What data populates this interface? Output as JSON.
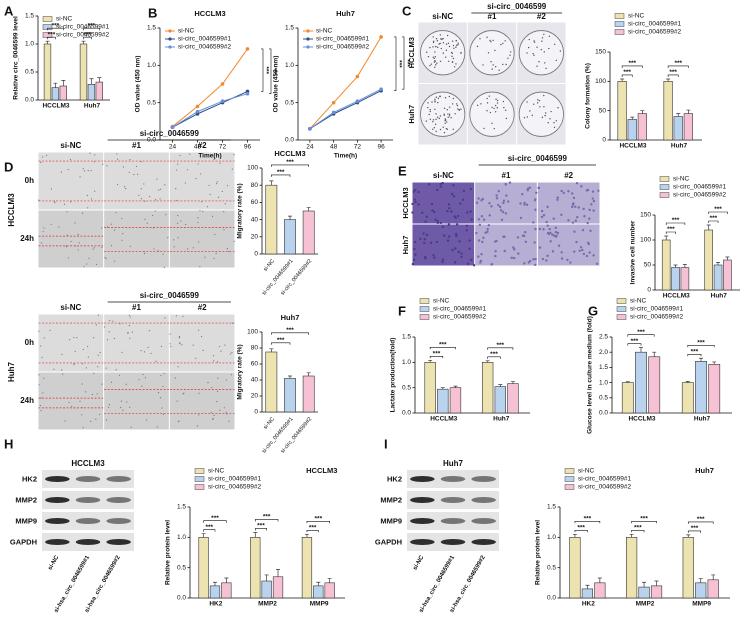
{
  "panel_labels": [
    "A",
    "B",
    "C",
    "D",
    "E",
    "F",
    "G",
    "H",
    "I"
  ],
  "image_panels": [
    {
      "group": "si-circ_0046599",
      "columns": [
        "si-NC",
        "#1",
        "#2"
      ],
      "rows": [
        "HCCLM3",
        "Huh7"
      ]
    },
    {
      "group": "si-circ_0046599",
      "columns": [
        "si-NC",
        "#1",
        "#2"
      ],
      "rows": [
        "0h",
        "24h"
      ],
      "side": "HCCLM3"
    },
    {
      "group": "si-circ_0046599",
      "columns": [
        "si-NC",
        "#1",
        "#2"
      ],
      "rows": [
        "0h",
        "24h"
      ],
      "side": "Huh7"
    },
    {
      "group": "si-circ_0046599",
      "columns": [
        "si-NC",
        "#1",
        "#2"
      ],
      "rows": [
        "HCCLM3",
        "Huh7"
      ]
    }
  ],
  "blots": [
    {
      "title": "HCCLM3",
      "rows": [
        "HK2",
        "MMP2",
        "MMP9",
        "GAPDH"
      ],
      "lanes": [
        "si-NC",
        "si-hsa_circ_0046599#1",
        "si-hsa_circ_0046599#2"
      ]
    },
    {
      "title": "Huh7",
      "rows": [
        "HK2",
        "MMP2",
        "MMP9",
        "GAPDH"
      ],
      "lanes": [
        "si-NC",
        "si-hsa_circ_0046599#1",
        "si-hsa_circ_0046599#2"
      ]
    }
  ],
  "chart_data": [
    {
      "type": "bar",
      "ylabel": "Relative circ_0046599 level",
      "categories": [
        "HCCLM3",
        "Huh7"
      ],
      "legend": "upper left",
      "series": [
        {
          "name": "si-NC",
          "color": "#ede3b0",
          "values": [
            1,
            1
          ],
          "errors": [
            0.05,
            0.05
          ]
        },
        {
          "name": "si-circ_0046599#1",
          "color": "#b9d3ee",
          "values": [
            0.22,
            0.28
          ],
          "errors": [
            0.08,
            0.1
          ]
        },
        {
          "name": "si-circ_0046599#2",
          "color": "#f7c1d5",
          "values": [
            0.25,
            0.32
          ],
          "errors": [
            0.1,
            0.08
          ]
        }
      ],
      "significance": [
        [
          "***",
          "***"
        ],
        [
          "***",
          "***"
        ]
      ],
      "ylim": [
        0,
        1.5
      ],
      "yticks": [
        {
          "value": 0,
          "label": "0.0"
        },
        {
          "value": 0.5,
          "label": "0.5"
        },
        {
          "value": 1,
          "label": "1.0"
        },
        {
          "value": 1.5,
          "label": "1.5"
        }
      ]
    },
    {
      "type": "line",
      "title": "HCCLM3",
      "xlabel": "Time(h)",
      "ylabel": "OD value (450 nm)",
      "legend": "upper left",
      "x": [
        24,
        48,
        72,
        96
      ],
      "xlim": [
        12,
        108
      ],
      "xticks": [
        24,
        48,
        72,
        96
      ],
      "series": [
        {
          "name": "si-NC",
          "color": "#f08a2c",
          "values": [
            0.18,
            0.45,
            0.75,
            1.22
          ]
        },
        {
          "name": "si-circ_0046599#1",
          "color": "#2c4f8a",
          "values": [
            0.17,
            0.35,
            0.5,
            0.65
          ]
        },
        {
          "name": "si-circ_0046599#2",
          "color": "#6a8fd8",
          "values": [
            0.17,
            0.38,
            0.52,
            0.62
          ]
        }
      ],
      "significance": [
        "***",
        "***"
      ],
      "ylim": [
        0,
        1.5
      ],
      "yticks": [
        {
          "value": 0,
          "label": "0.0"
        },
        {
          "value": 0.5,
          "label": "0.5"
        },
        {
          "value": 1,
          "label": "1.0"
        },
        {
          "value": 1.5,
          "label": "1.5"
        }
      ]
    },
    {
      "type": "line",
      "title": "Huh7",
      "xlabel": "Time(h)",
      "ylabel": "OD value (450 nm)",
      "legend": "upper left",
      "x": [
        24,
        48,
        72,
        96
      ],
      "xlim": [
        12,
        108
      ],
      "xticks": [
        24,
        48,
        72,
        96
      ],
      "series": [
        {
          "name": "si-NC",
          "color": "#f08a2c",
          "values": [
            0.15,
            0.5,
            0.85,
            1.38
          ]
        },
        {
          "name": "si-circ_0046599#1",
          "color": "#2c4f8a",
          "values": [
            0.15,
            0.35,
            0.5,
            0.66
          ]
        },
        {
          "name": "si-circ_0046599#2",
          "color": "#6a8fd8",
          "values": [
            0.15,
            0.37,
            0.52,
            0.68
          ]
        }
      ],
      "significance": [
        "***",
        "***"
      ],
      "ylim": [
        0,
        1.5
      ],
      "yticks": [
        {
          "value": 0,
          "label": "0.0"
        },
        {
          "value": 0.5,
          "label": "0.5"
        },
        {
          "value": 1,
          "label": "1.0"
        },
        {
          "value": 1.5,
          "label": "1.5"
        }
      ]
    },
    {
      "type": "bar",
      "ylabel": "Colony formation (%)",
      "categories": [
        "HCCLM3",
        "Huh7"
      ],
      "legend": "above",
      "series": [
        {
          "name": "si-NC",
          "color": "#ede3b0",
          "values": [
            100,
            100
          ],
          "errors": [
            4,
            4
          ]
        },
        {
          "name": "si-circ_0046599#1",
          "color": "#b9d3ee",
          "values": [
            35,
            40
          ],
          "errors": [
            4,
            5
          ]
        },
        {
          "name": "si-circ_0046599#2",
          "color": "#f7c1d5",
          "values": [
            45,
            45
          ],
          "errors": [
            5,
            6
          ]
        }
      ],
      "significance": [
        [
          "***",
          "***"
        ],
        [
          "***",
          "***"
        ]
      ],
      "ylim": [
        0,
        150
      ],
      "yticks": [
        0,
        50,
        100,
        150
      ]
    },
    {
      "type": "bar",
      "title": "HCCLM3",
      "ylabel": "Migratory rate (%)",
      "categories": [
        "si-NC",
        "si-circ_0046599#1",
        "si-circ_0046599#2"
      ],
      "values": [
        80,
        40,
        50
      ],
      "errors": [
        5,
        4,
        4
      ],
      "colors": [
        "#ede3b0",
        "#b9d3ee",
        "#f7c1d5"
      ],
      "xtick_rotation": -50,
      "significance": [
        "***",
        "***"
      ],
      "ylim": [
        0,
        100
      ],
      "yticks": [
        0,
        20,
        40,
        60,
        80,
        100
      ]
    },
    {
      "type": "bar",
      "title": "Huh7",
      "ylabel": "Migratory rate (%)",
      "categories": [
        "si-NC",
        "si-circ_0046599#1",
        "si-circ_0046599#2"
      ],
      "values": [
        75,
        42,
        45
      ],
      "errors": [
        4,
        3,
        4
      ],
      "colors": [
        "#ede3b0",
        "#b9d3ee",
        "#f7c1d5"
      ],
      "xtick_rotation": -50,
      "significance": [
        "***",
        "***"
      ],
      "ylim": [
        0,
        100
      ],
      "yticks": [
        0,
        20,
        40,
        60,
        80,
        100
      ]
    },
    {
      "type": "bar",
      "ylabel": "Invasive cell number",
      "categories": [
        "HCCLM3",
        "Huh7"
      ],
      "legend": "above",
      "series": [
        {
          "name": "si-NC",
          "color": "#ede3b0",
          "values": [
            100,
            120
          ],
          "errors": [
            8,
            10
          ]
        },
        {
          "name": "si-circ_0046599#1",
          "color": "#b9d3ee",
          "values": [
            45,
            50
          ],
          "errors": [
            5,
            5
          ]
        },
        {
          "name": "si-circ_0046599#2",
          "color": "#f7c1d5",
          "values": [
            45,
            60
          ],
          "errors": [
            6,
            6
          ]
        }
      ],
      "significance": [
        [
          "***",
          "***"
        ],
        [
          "***",
          "***"
        ]
      ],
      "ylim": [
        0,
        150
      ],
      "yticks": [
        0,
        50,
        100,
        150
      ]
    },
    {
      "type": "bar",
      "ylabel": "Lactate production(fold)",
      "categories": [
        "HCCLM3",
        "Huh7"
      ],
      "legend": "above",
      "series": [
        {
          "name": "si-NC",
          "color": "#ede3b0",
          "values": [
            1,
            1
          ],
          "errors": [
            0.04,
            0.03
          ]
        },
        {
          "name": "si-circ_0046599#1",
          "color": "#b9d3ee",
          "values": [
            0.47,
            0.52
          ],
          "errors": [
            0.03,
            0.04
          ]
        },
        {
          "name": "si-circ_0046599#2",
          "color": "#f7c1d5",
          "values": [
            0.5,
            0.58
          ],
          "errors": [
            0.03,
            0.04
          ]
        }
      ],
      "significance": [
        [
          "***",
          "***"
        ],
        [
          "***",
          "***"
        ]
      ],
      "ylim": [
        0,
        1.5
      ],
      "yticks": [
        {
          "value": 0,
          "label": "0.0"
        },
        {
          "value": 0.5,
          "label": "0.5"
        },
        {
          "value": 1,
          "label": "1.0"
        },
        {
          "value": 1.5,
          "label": "1.5"
        }
      ]
    },
    {
      "type": "bar",
      "ylabel": "Glucose level in culture medium (fold)",
      "categories": [
        "HCCLM3",
        "Huh7"
      ],
      "legend": "above",
      "series": [
        {
          "name": "si-NC",
          "color": "#ede3b0",
          "values": [
            1,
            1
          ],
          "errors": [
            0.03,
            0.04
          ]
        },
        {
          "name": "si-circ_0046599#1",
          "color": "#b9d3ee",
          "values": [
            2,
            1.7
          ],
          "errors": [
            0.15,
            0.1
          ]
        },
        {
          "name": "si-circ_0046599#2",
          "color": "#f7c1d5",
          "values": [
            1.85,
            1.6
          ],
          "errors": [
            0.15,
            0.08
          ]
        }
      ],
      "significance": [
        [
          "***",
          "***"
        ],
        [
          "***",
          "***"
        ]
      ],
      "ylim": [
        0,
        2.5
      ],
      "yticks": [
        {
          "value": 0,
          "label": "0.0"
        },
        {
          "value": 0.5,
          "label": "0.5"
        },
        {
          "value": 1,
          "label": "1.0"
        },
        {
          "value": 1.5,
          "label": "1.5"
        },
        {
          "value": 2,
          "label": "2.0"
        },
        {
          "value": 2.5,
          "label": "2.5"
        }
      ]
    },
    {
      "type": "bar",
      "title": "HCCLM3",
      "ylabel": "Relative protein level",
      "categories": [
        "HK2",
        "MMP2",
        "MMP9"
      ],
      "legend": "above",
      "series": [
        {
          "name": "si-NC",
          "color": "#ede3b0",
          "values": [
            1,
            1,
            1
          ],
          "errors": [
            0.06,
            0.08,
            0.05
          ]
        },
        {
          "name": "si-circ_0046599#1",
          "color": "#b9d3ee",
          "values": [
            0.2,
            0.28,
            0.2
          ],
          "errors": [
            0.06,
            0.1,
            0.06
          ]
        },
        {
          "name": "si-circ_0046599#2",
          "color": "#f7c1d5",
          "values": [
            0.25,
            0.35,
            0.25
          ],
          "errors": [
            0.08,
            0.12,
            0.07
          ]
        }
      ],
      "significance": [
        [
          "***",
          "***"
        ],
        [
          "***",
          "***"
        ],
        [
          "***",
          "***"
        ]
      ],
      "ylim": [
        0,
        1.5
      ],
      "yticks": [
        {
          "value": 0,
          "label": "0.0"
        },
        {
          "value": 0.5,
          "label": "0.5"
        },
        {
          "value": 1,
          "label": "1.0"
        },
        {
          "value": 1.5,
          "label": "1.5"
        }
      ]
    },
    {
      "type": "bar",
      "title": "Huh7",
      "ylabel": "Relative protein level",
      "categories": [
        "HK2",
        "MMP2",
        "MMP9"
      ],
      "legend": "above",
      "series": [
        {
          "name": "si-NC",
          "color": "#ede3b0",
          "values": [
            1,
            1,
            1
          ],
          "errors": [
            0.05,
            0.05,
            0.04
          ]
        },
        {
          "name": "si-circ_0046599#1",
          "color": "#b9d3ee",
          "values": [
            0.15,
            0.18,
            0.25
          ],
          "errors": [
            0.06,
            0.08,
            0.07
          ]
        },
        {
          "name": "si-circ_0046599#2",
          "color": "#f7c1d5",
          "values": [
            0.25,
            0.2,
            0.3
          ],
          "errors": [
            0.08,
            0.08,
            0.08
          ]
        }
      ],
      "significance": [
        [
          "***",
          "***"
        ],
        [
          "***",
          "***"
        ],
        [
          "***",
          "***"
        ]
      ],
      "ylim": [
        0,
        1.5
      ],
      "yticks": [
        {
          "value": 0,
          "label": "0.0"
        },
        {
          "value": 0.5,
          "label": "0.5"
        },
        {
          "value": 1,
          "label": "1.0"
        },
        {
          "value": 1.5,
          "label": "1.5"
        }
      ]
    }
  ]
}
